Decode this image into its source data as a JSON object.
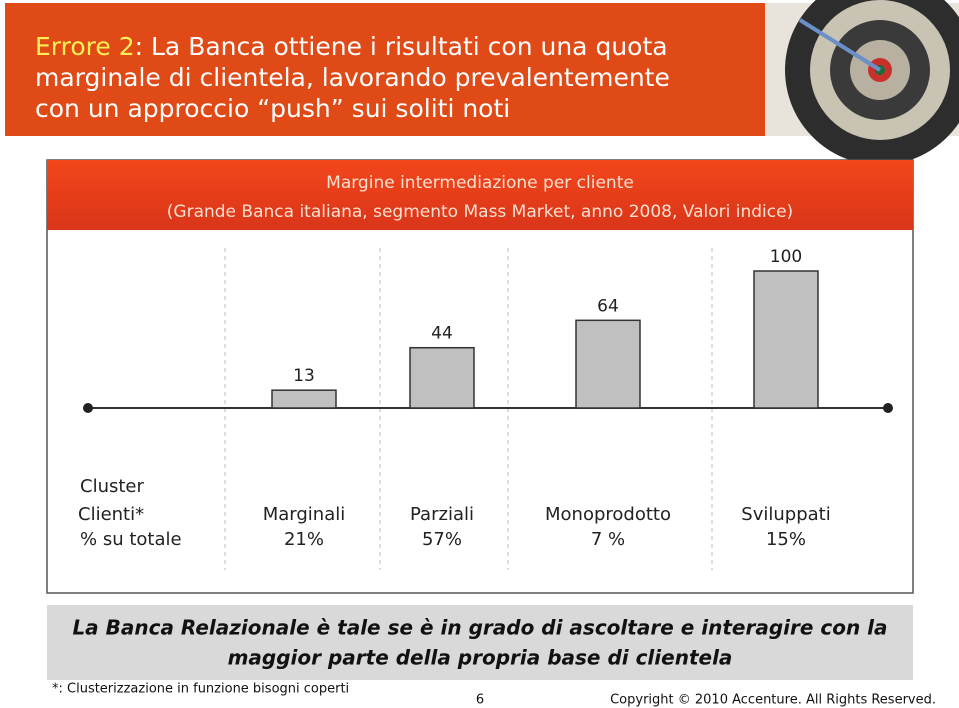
{
  "header": {
    "highlight": "Errore 2",
    "lines": [
      ": La Banca ottiene i risultati con una quota",
      "marginale di clientela, lavorando prevalentemente",
      "con un approccio “push” sui soliti noti"
    ]
  },
  "chart_data": {
    "type": "bar",
    "title": "Margine intermediazione per cliente",
    "subtitle": "(Grande Banca italiana, segmento Mass Market, anno 2008, Valori indice)",
    "categories": [
      "Marginali",
      "Parziali",
      "Monoprodotto",
      "Sviluppati"
    ],
    "values": [
      13,
      44,
      64,
      100
    ],
    "color": "#c0c0c0",
    "row_label_lines": [
      "Cluster",
      "Clienti*"
    ],
    "share_label": "% su totale",
    "shares": [
      21,
      57,
      7,
      15
    ],
    "share_labels": [
      "21%",
      "57%",
      "7 %",
      "15%"
    ]
  },
  "callout": [
    "La Banca Relazionale è tale se è in grado di ascoltare e interagire con la",
    "maggior parte della propria base di clientela"
  ],
  "footnote": "*: Clusterizzazione in funzione bisogni coperti",
  "page_number": "6",
  "copyright": "Copyright © 2010 Accenture. All Rights Reserved."
}
